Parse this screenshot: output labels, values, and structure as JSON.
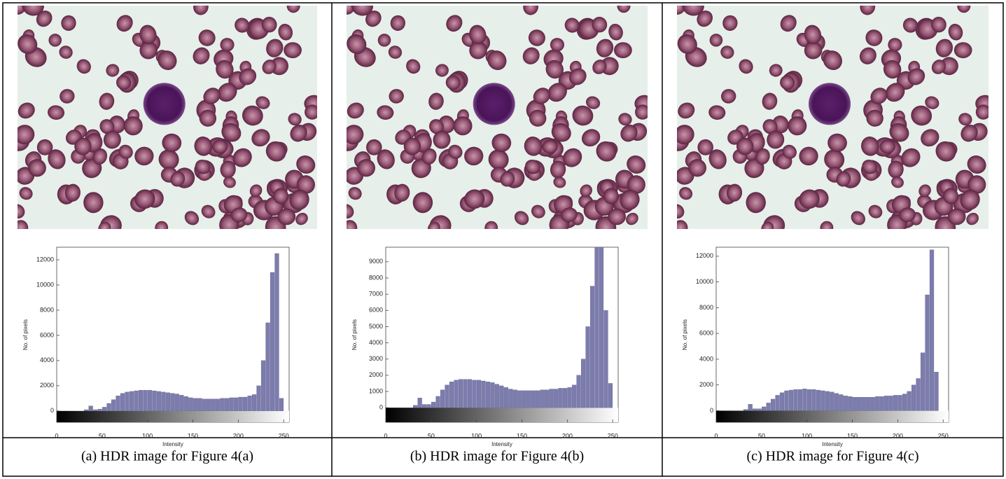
{
  "captions": [
    "(a) HDR image for Figure 4(a)",
    "(b) HDR image for Figure 4(b)",
    "(c) HDR image for Figure 4(c)"
  ],
  "chart_data": [
    {
      "type": "histogram",
      "xlabel": "Intensity",
      "ylabel": "No. of pixels",
      "color": "#7c7cae",
      "bins": [
        0,
        5,
        10,
        15,
        20,
        25,
        30,
        35,
        40,
        45,
        50,
        55,
        60,
        65,
        70,
        75,
        80,
        85,
        90,
        95,
        100,
        105,
        110,
        115,
        120,
        125,
        130,
        135,
        140,
        145,
        150,
        155,
        160,
        165,
        170,
        175,
        180,
        185,
        190,
        195,
        200,
        205,
        210,
        215,
        220,
        225,
        230,
        235,
        240,
        245,
        250,
        255
      ],
      "counts": [
        0,
        0,
        0,
        0,
        0,
        0,
        100,
        400,
        100,
        150,
        300,
        600,
        900,
        1200,
        1400,
        1500,
        1550,
        1600,
        1650,
        1650,
        1650,
        1600,
        1550,
        1500,
        1450,
        1400,
        1350,
        1250,
        1150,
        1050,
        1000,
        1000,
        950,
        950,
        950,
        950,
        1000,
        1000,
        1050,
        1050,
        1100,
        1100,
        1200,
        1300,
        2000,
        4000,
        7000,
        11000,
        12500,
        1000,
        0
      ],
      "xlim": [
        0,
        256
      ],
      "ylim": [
        -900,
        13000
      ],
      "xticks": [
        0,
        50,
        100,
        150,
        200,
        250
      ],
      "yticks": [
        0,
        2000,
        4000,
        6000,
        8000,
        10000,
        12000
      ]
    },
    {
      "type": "histogram",
      "xlabel": "Intensity",
      "ylabel": "No. of pixels",
      "color": "#7c7cae",
      "bins": [
        0,
        5,
        10,
        15,
        20,
        25,
        30,
        35,
        40,
        45,
        50,
        55,
        60,
        65,
        70,
        75,
        80,
        85,
        90,
        95,
        100,
        105,
        110,
        115,
        120,
        125,
        130,
        135,
        140,
        145,
        150,
        155,
        160,
        165,
        170,
        175,
        180,
        185,
        190,
        195,
        200,
        205,
        210,
        215,
        220,
        225,
        230,
        235,
        240,
        245,
        250,
        255
      ],
      "counts": [
        0,
        0,
        0,
        0,
        0,
        0,
        150,
        600,
        200,
        200,
        350,
        700,
        1100,
        1400,
        1600,
        1700,
        1750,
        1750,
        1750,
        1700,
        1700,
        1650,
        1600,
        1550,
        1450,
        1350,
        1250,
        1150,
        1100,
        1050,
        1050,
        1050,
        1050,
        1050,
        1100,
        1100,
        1150,
        1150,
        1200,
        1200,
        1250,
        1400,
        2000,
        3000,
        5000,
        7500,
        9900,
        9900,
        6000,
        1500,
        0
      ],
      "xlim": [
        0,
        256
      ],
      "ylim": [
        -900,
        9900
      ],
      "xticks": [
        0,
        50,
        100,
        150,
        200,
        250
      ],
      "yticks": [
        0,
        1000,
        2000,
        3000,
        4000,
        5000,
        6000,
        7000,
        8000,
        9000
      ]
    },
    {
      "type": "histogram",
      "xlabel": "Intensity",
      "ylabel": "No. of pixels",
      "color": "#7c7cae",
      "bins": [
        0,
        5,
        10,
        15,
        20,
        25,
        30,
        35,
        40,
        45,
        50,
        55,
        60,
        65,
        70,
        75,
        80,
        85,
        90,
        95,
        100,
        105,
        110,
        115,
        120,
        125,
        130,
        135,
        140,
        145,
        150,
        155,
        160,
        165,
        170,
        175,
        180,
        185,
        190,
        195,
        200,
        205,
        210,
        215,
        220,
        225,
        230,
        235,
        240,
        245,
        250,
        255
      ],
      "counts": [
        0,
        0,
        0,
        0,
        0,
        0,
        100,
        500,
        150,
        150,
        300,
        600,
        900,
        1200,
        1400,
        1550,
        1600,
        1650,
        1650,
        1700,
        1650,
        1650,
        1600,
        1550,
        1500,
        1450,
        1350,
        1250,
        1150,
        1100,
        1050,
        1050,
        1050,
        1050,
        1050,
        1100,
        1100,
        1150,
        1150,
        1200,
        1200,
        1300,
        1500,
        2000,
        2500,
        4500,
        9000,
        12500,
        3000,
        0,
        0
      ],
      "xlim": [
        0,
        256
      ],
      "ylim": [
        -900,
        12700
      ],
      "xticks": [
        0,
        50,
        100,
        150,
        200,
        250
      ],
      "yticks": [
        0,
        2000,
        4000,
        6000,
        8000,
        10000,
        12000
      ]
    }
  ]
}
